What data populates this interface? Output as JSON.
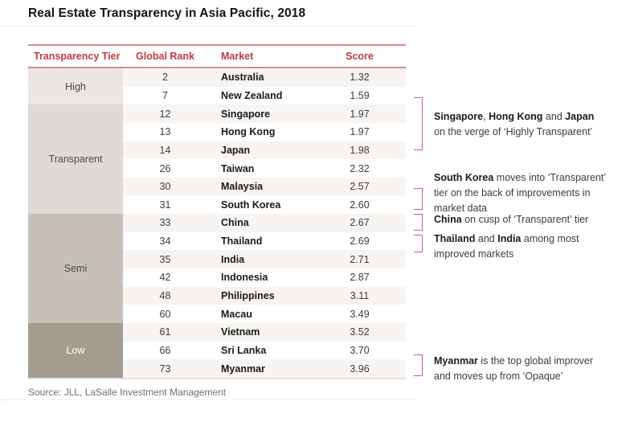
{
  "title": "Real Estate Transparency in Asia Pacific, 2018",
  "source": "Source: JLL, LaSalle Investment Management",
  "chart_data": {
    "type": "table",
    "title": "Real Estate Transparency in Asia Pacific, 2018",
    "columns": [
      "Transparency Tier",
      "Global Rank",
      "Market",
      "Score"
    ],
    "rows": [
      {
        "tier": "High",
        "rank": "2",
        "market": "Australia",
        "score": "1.32"
      },
      {
        "tier": "High",
        "rank": "7",
        "market": "New Zealand",
        "score": "1.59"
      },
      {
        "tier": "Transparent",
        "rank": "12",
        "market": "Singapore",
        "score": "1.97"
      },
      {
        "tier": "Transparent",
        "rank": "13",
        "market": "Hong Kong",
        "score": "1.97"
      },
      {
        "tier": "Transparent",
        "rank": "14",
        "market": "Japan",
        "score": "1.98"
      },
      {
        "tier": "Transparent",
        "rank": "26",
        "market": "Taiwan",
        "score": "2.32"
      },
      {
        "tier": "Transparent",
        "rank": "30",
        "market": "Malaysia",
        "score": "2.57"
      },
      {
        "tier": "Transparent",
        "rank": "31",
        "market": "South Korea",
        "score": "2.60"
      },
      {
        "tier": "Semi",
        "rank": "33",
        "market": "China",
        "score": "2.67"
      },
      {
        "tier": "Semi",
        "rank": "34",
        "market": "Thailand",
        "score": "2.69"
      },
      {
        "tier": "Semi",
        "rank": "35",
        "market": "India",
        "score": "2.71"
      },
      {
        "tier": "Semi",
        "rank": "42",
        "market": "Indonesia",
        "score": "2.87"
      },
      {
        "tier": "Semi",
        "rank": "48",
        "market": "Philippines",
        "score": "3.11"
      },
      {
        "tier": "Semi",
        "rank": "60",
        "market": "Macau",
        "score": "3.49"
      },
      {
        "tier": "Low",
        "rank": "61",
        "market": "Vietnam",
        "score": "3.52"
      },
      {
        "tier": "Low",
        "rank": "66",
        "market": "Sri Lanka",
        "score": "3.70"
      },
      {
        "tier": "Low",
        "rank": "73",
        "market": "Myanmar",
        "score": "3.96"
      }
    ],
    "tier_styles": [
      {
        "label": "High",
        "bg": "#eae6e2",
        "text_color": "#4a4a4a"
      },
      {
        "label": "Transparent",
        "bg": "#dedad5",
        "text_color": "#4a4a4a"
      },
      {
        "label": "Semi",
        "bg": "#c6c0b8",
        "text_color": "#4a4a4a"
      },
      {
        "label": "Low",
        "bg": "#a49c90",
        "text_color": "#ffffff"
      }
    ],
    "source": "Source: JLL, LaSalle Investment Management"
  },
  "annotations": [
    {
      "lines": [
        {
          "segments": [
            {
              "text": "Singapore",
              "bold": true
            },
            {
              "text": ", ",
              "bold": false
            },
            {
              "text": "Hong Kong",
              "bold": true
            },
            {
              "text": " and ",
              "bold": false
            },
            {
              "text": "Japan",
              "bold": true
            }
          ]
        },
        {
          "segments": [
            {
              "text": "on the verge of ‘Highly Transparent’",
              "bold": false
            }
          ]
        }
      ]
    },
    {
      "lines": [
        {
          "segments": [
            {
              "text": "South Korea",
              "bold": true
            },
            {
              "text": " moves into ‘Transparent’",
              "bold": false
            }
          ]
        },
        {
          "segments": [
            {
              "text": "tier on the back of improvements in",
              "bold": false
            }
          ]
        },
        {
          "segments": [
            {
              "text": "market data",
              "bold": false
            }
          ]
        }
      ]
    },
    {
      "lines": [
        {
          "segments": [
            {
              "text": "China",
              "bold": true
            },
            {
              "text": " on cusp of ‘Transparent’ tier",
              "bold": false
            }
          ]
        }
      ]
    },
    {
      "lines": [
        {
          "segments": [
            {
              "text": "Thailand",
              "bold": true
            },
            {
              "text": " and ",
              "bold": false
            },
            {
              "text": "India",
              "bold": true
            },
            {
              "text": " among most",
              "bold": false
            }
          ]
        },
        {
          "segments": [
            {
              "text": "improved markets",
              "bold": false
            }
          ]
        }
      ]
    },
    {
      "lines": [
        {
          "segments": [
            {
              "text": "Myanmar",
              "bold": true
            },
            {
              "text": " is the top global improver",
              "bold": false
            }
          ]
        },
        {
          "segments": [
            {
              "text": "and moves up from ‘Opaque’",
              "bold": false
            }
          ]
        }
      ]
    }
  ],
  "colors": {
    "header_text_red": "#bf3a41",
    "rule_red": "#d68b8c",
    "table_bottom_rule": "#eddedb",
    "bracket_red": "#c2686d",
    "row_stripe": "#f8f4f1",
    "title_text": "#141414",
    "body_text": "#3c3c3c",
    "market_text": "#1b1b1b",
    "source_text": "#707070"
  }
}
